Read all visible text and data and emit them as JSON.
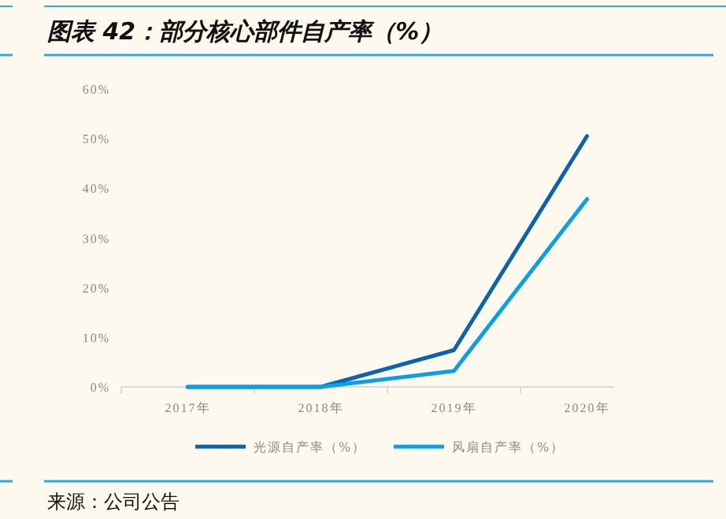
{
  "chart_data": {
    "type": "line",
    "title": "图表 42：部分核心部件自产率（%）",
    "annotations": [
      "来源：公司公告"
    ],
    "categories": [
      "2017年",
      "2018年",
      "2019年",
      "2020年"
    ],
    "series": [
      {
        "name": "光源自产率（%）",
        "color": "#0a64ad",
        "values": [
          0,
          0,
          7.4,
          50.5
        ]
      },
      {
        "name": "风扇自产率（%）",
        "color": "#0aa0e6",
        "values": [
          0,
          0,
          3.2,
          37.8
        ]
      }
    ],
    "ylim": [
      0,
      60
    ],
    "yticks": [
      {
        "value": 0,
        "label": "0%"
      },
      {
        "value": 10,
        "label": "10%"
      },
      {
        "value": 20,
        "label": "20%"
      },
      {
        "value": 30,
        "label": "30%"
      },
      {
        "value": 40,
        "label": "40%"
      },
      {
        "value": 50,
        "label": "50%"
      },
      {
        "value": 60,
        "label": "60%"
      }
    ],
    "legend": "bottom",
    "marker": "none",
    "line_style": "solid",
    "grid": false
  }
}
